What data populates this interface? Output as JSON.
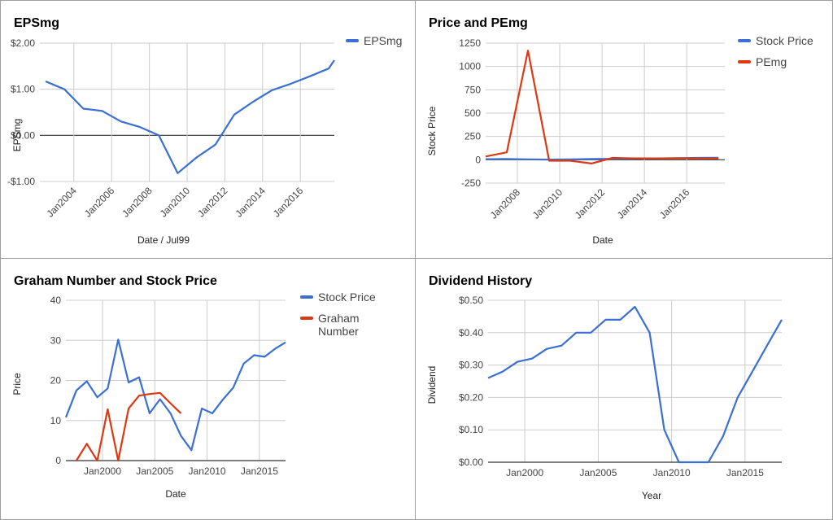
{
  "colors": {
    "blue": "#3b6fd4",
    "red": "#dc3912",
    "grid": "#cccccc",
    "zero": "#333333"
  },
  "chart_data": [
    {
      "id": "epsmg",
      "type": "line",
      "title": "EPSmg",
      "xlabel": "Date / Jul99",
      "ylabel": "EPSmg",
      "xlim": [
        2002.2,
        2017.8
      ],
      "ylim": [
        -1.0,
        2.0
      ],
      "yticks": [
        -1,
        0,
        1,
        2
      ],
      "ytick_labels": [
        "-$1.00",
        "$0.00",
        "$1.00",
        "$2.00"
      ],
      "xticks": [
        2004,
        2006,
        2008,
        2010,
        2012,
        2014,
        2016
      ],
      "xtick_labels": [
        "Jan2004",
        "Jan2006",
        "Jan2008",
        "Jan2010",
        "Jan2012",
        "Jan2014",
        "Jan2016"
      ],
      "legend_position": "right",
      "series": [
        {
          "name": "EPSmg",
          "color": "#3b6fd4",
          "x": [
            2002.5,
            2003.5,
            2004.5,
            2005.5,
            2006.5,
            2007.5,
            2008.5,
            2009.5,
            2010.5,
            2011.5,
            2012.5,
            2013.5,
            2014.5,
            2015.5,
            2016.5,
            2017.5,
            2017.8
          ],
          "y": [
            1.17,
            1.0,
            0.58,
            0.53,
            0.3,
            0.18,
            0.0,
            -0.82,
            -0.48,
            -0.2,
            0.45,
            0.73,
            0.98,
            1.12,
            1.28,
            1.45,
            1.63
          ]
        }
      ]
    },
    {
      "id": "price-pemg",
      "type": "line",
      "title": "Price and PEmg",
      "xlabel": "Date",
      "ylabel": "Stock Price",
      "xlim": [
        2006.5,
        2017.8
      ],
      "ylim": [
        -250,
        1250
      ],
      "yticks": [
        -250,
        0,
        250,
        500,
        750,
        1000,
        1250
      ],
      "ytick_labels": [
        "-250",
        "0",
        "250",
        "500",
        "750",
        "1000",
        "1250"
      ],
      "xticks": [
        2008,
        2010,
        2012,
        2014,
        2016
      ],
      "xtick_labels": [
        "Jan2008",
        "Jan2010",
        "Jan2012",
        "Jan2014",
        "Jan2016"
      ],
      "legend_position": "right",
      "series": [
        {
          "name": "Stock Price",
          "color": "#3b6fd4",
          "x": [
            2006.5,
            2007.5,
            2008.5,
            2009.5,
            2010.5,
            2011.5,
            2012.5,
            2013.5,
            2014.5,
            2015.5,
            2016.5,
            2017.5
          ],
          "y": [
            6,
            8,
            5,
            2,
            4,
            8,
            10,
            12,
            14,
            18,
            20,
            22
          ]
        },
        {
          "name": "PEmg",
          "color": "#dc3912",
          "x": [
            2006.5,
            2007.5,
            2008.5,
            2009.5,
            2010.5,
            2011.5,
            2012.5,
            2013.5,
            2014.5,
            2015.5,
            2016.5,
            2017.5
          ],
          "y": [
            35,
            80,
            1170,
            -10,
            -10,
            -40,
            20,
            15,
            15,
            16,
            14,
            13
          ]
        }
      ]
    },
    {
      "id": "graham",
      "type": "line",
      "title": "Graham Number and Stock Price",
      "xlabel": "Date",
      "ylabel": "Price",
      "xlim": [
        1996.5,
        2017.5
      ],
      "ylim": [
        0,
        40
      ],
      "yticks": [
        0,
        10,
        20,
        30,
        40
      ],
      "ytick_labels": [
        "0",
        "10",
        "20",
        "30",
        "40"
      ],
      "xticks": [
        2000,
        2005,
        2010,
        2015
      ],
      "xtick_labels": [
        "Jan2000",
        "Jan2005",
        "Jan2010",
        "Jan2015"
      ],
      "legend_position": "right",
      "series": [
        {
          "name": "Stock Price",
          "color": "#3b6fd4",
          "x": [
            1996.5,
            1997.5,
            1998.5,
            1999.5,
            2000.5,
            2001.5,
            2002.5,
            2003.5,
            2004.5,
            2005.5,
            2006.5,
            2007.5,
            2008.5,
            2009.5,
            2010.5,
            2011.5,
            2012.5,
            2013.5,
            2014.5,
            2015.5,
            2016.5,
            2017.5
          ],
          "y": [
            10.8,
            17.5,
            19.8,
            15.8,
            18,
            30.2,
            19.5,
            20.8,
            11.8,
            15.3,
            11.8,
            6.2,
            2.6,
            13,
            11.8,
            15.2,
            18.2,
            24.2,
            26.3,
            25.9,
            27.9,
            29.5
          ]
        },
        {
          "name": "Graham Number",
          "color": "#dc3912",
          "x": [
            1997.5,
            1998.5,
            1999.5,
            2000.5,
            2001.5,
            2002.5,
            2003.5,
            2004.5,
            2005.5,
            2006.5,
            2007.5
          ],
          "y": [
            0,
            4.2,
            0,
            12.8,
            0,
            13,
            16.2,
            16.6,
            16.9,
            14.3,
            11.8
          ]
        }
      ]
    },
    {
      "id": "dividend",
      "type": "line",
      "title": "Dividend History",
      "xlabel": "Year",
      "ylabel": "Dividend",
      "xlim": [
        1997.5,
        2017.5
      ],
      "ylim": [
        0,
        0.5
      ],
      "yticks": [
        0,
        0.1,
        0.2,
        0.3,
        0.4,
        0.5
      ],
      "ytick_labels": [
        "$0.00",
        "$0.10",
        "$0.20",
        "$0.30",
        "$0.40",
        "$0.50"
      ],
      "xticks": [
        2000,
        2005,
        2010,
        2015
      ],
      "xtick_labels": [
        "Jan2000",
        "Jan2005",
        "Jan2010",
        "Jan2015"
      ],
      "legend_position": "none",
      "series": [
        {
          "name": "",
          "color": "#3b6fd4",
          "x": [
            1997.5,
            1998.5,
            1999.5,
            2000.5,
            2001.5,
            2002.5,
            2003.5,
            2004.5,
            2005.5,
            2006.5,
            2007.5,
            2008.5,
            2009.5,
            2010.5,
            2011.5,
            2012.5,
            2013.5,
            2014.5,
            2015.5,
            2016.5,
            2017.5
          ],
          "y": [
            0.26,
            0.28,
            0.31,
            0.32,
            0.35,
            0.36,
            0.4,
            0.4,
            0.44,
            0.44,
            0.48,
            0.4,
            0.1,
            0.0,
            0.0,
            0.0,
            0.08,
            0.2,
            0.28,
            0.36,
            0.44
          ]
        }
      ]
    }
  ]
}
